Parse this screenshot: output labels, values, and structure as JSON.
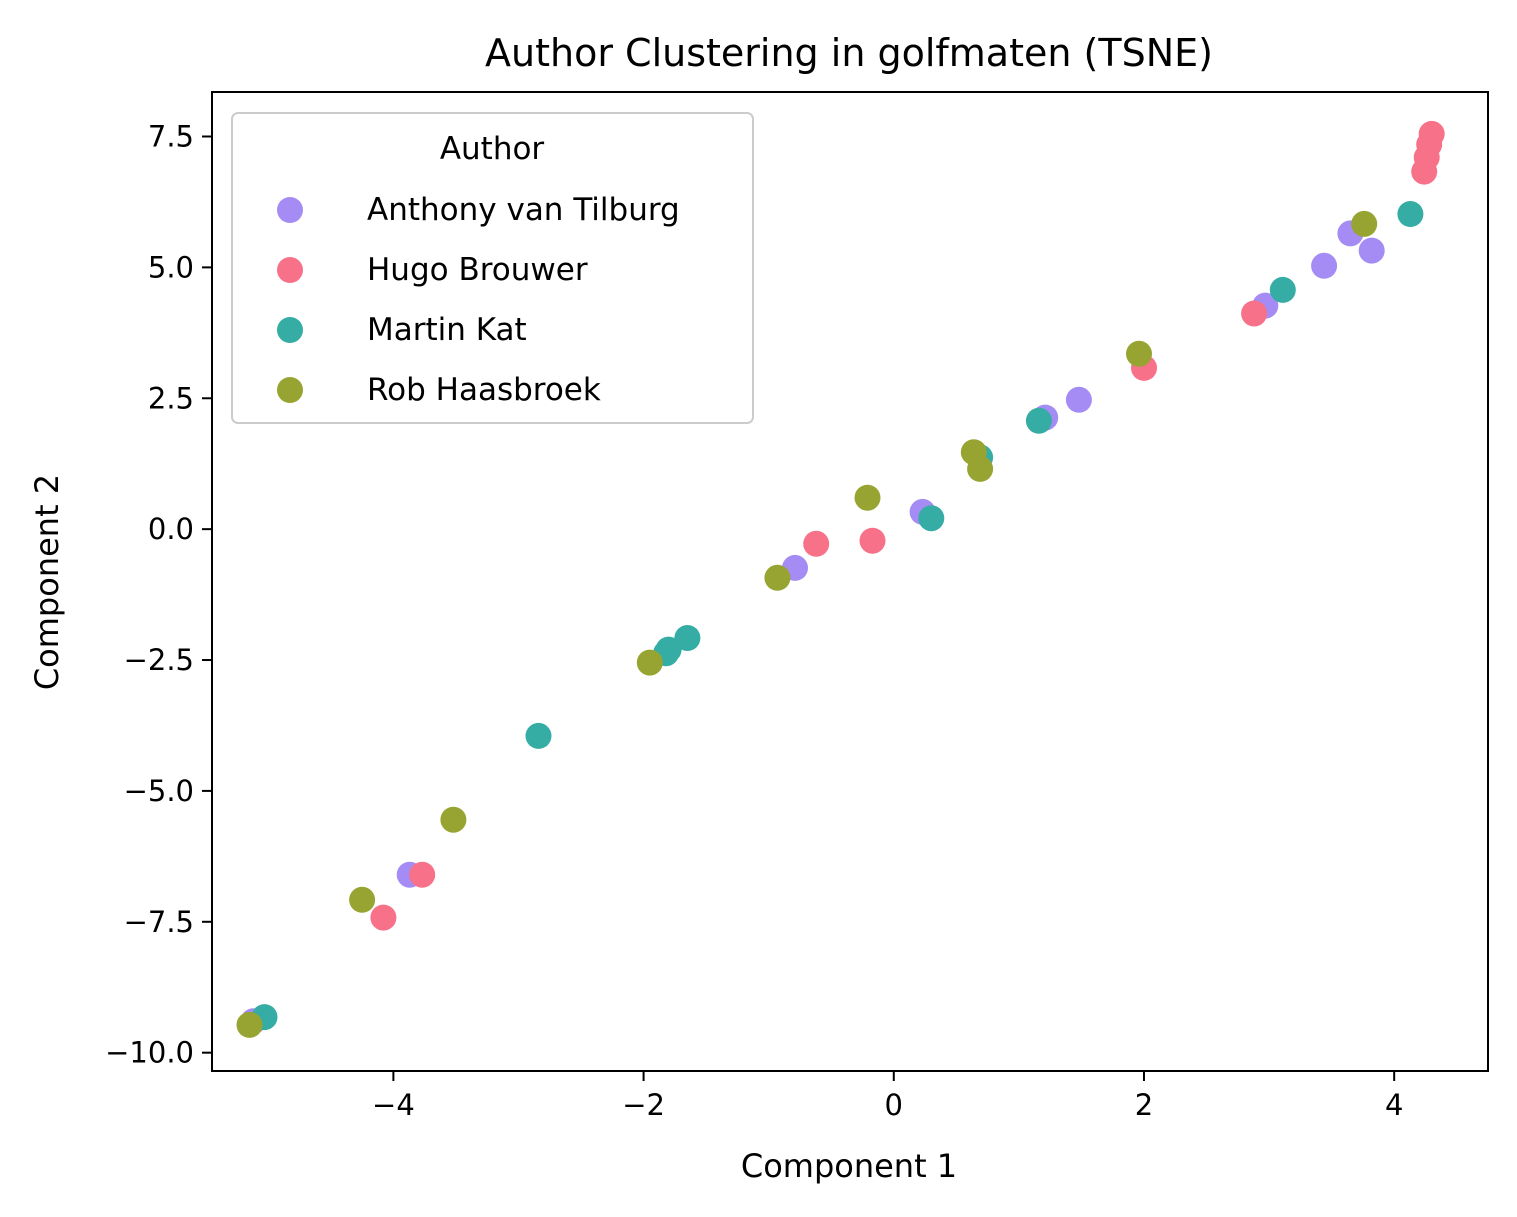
{
  "chart_data": {
    "type": "scatter",
    "title": "Author Clustering in golfmaten (TSNE)",
    "xlabel": "Component 1",
    "ylabel": "Component 2",
    "xlim": [
      -5.45,
      4.75
    ],
    "ylim": [
      -10.35,
      8.35
    ],
    "xticks": [
      -4,
      -2,
      0,
      2,
      4
    ],
    "yticks": [
      -10.0,
      -7.5,
      -5.0,
      -2.5,
      0.0,
      2.5,
      5.0,
      7.5
    ],
    "xtick_labels": [
      "−4",
      "−2",
      "0",
      "2",
      "4"
    ],
    "ytick_labels": [
      "−10.0",
      "−7.5",
      "−5.0",
      "−2.5",
      "0.0",
      "2.5",
      "5.0",
      "7.5"
    ],
    "grid": false,
    "legend": {
      "title": "Author",
      "placement": "top-left"
    },
    "series": [
      {
        "name": "Anthony van Tilburg",
        "color": "#a48cf4",
        "points": [
          [
            3.65,
            5.65
          ],
          [
            3.82,
            5.32
          ],
          [
            3.44,
            5.03
          ],
          [
            2.97,
            4.27
          ],
          [
            1.48,
            2.47
          ],
          [
            1.21,
            2.13
          ],
          [
            0.23,
            0.33
          ],
          [
            -0.79,
            -0.74
          ],
          [
            -3.87,
            -6.6
          ],
          [
            -5.12,
            -9.4
          ]
        ]
      },
      {
        "name": "Hugo Brouwer",
        "color": "#f77189",
        "points": [
          [
            4.3,
            7.55
          ],
          [
            4.28,
            7.35
          ],
          [
            4.26,
            7.1
          ],
          [
            4.24,
            6.83
          ],
          [
            2.88,
            4.12
          ],
          [
            2.0,
            3.08
          ],
          [
            -0.62,
            -0.28
          ],
          [
            -0.17,
            -0.22
          ],
          [
            -3.77,
            -6.6
          ],
          [
            -4.08,
            -7.42
          ]
        ]
      },
      {
        "name": "Martin Kat",
        "color": "#36ada4",
        "points": [
          [
            4.13,
            6.02
          ],
          [
            3.11,
            4.57
          ],
          [
            1.16,
            2.07
          ],
          [
            0.69,
            1.37
          ],
          [
            0.3,
            0.21
          ],
          [
            -1.65,
            -2.08
          ],
          [
            -1.8,
            -2.3
          ],
          [
            -1.82,
            -2.37
          ],
          [
            -2.84,
            -3.95
          ],
          [
            -5.03,
            -9.32
          ]
        ]
      },
      {
        "name": "Rob Haasbroek",
        "color": "#97a431",
        "points": [
          [
            3.76,
            5.83
          ],
          [
            1.96,
            3.35
          ],
          [
            0.64,
            1.47
          ],
          [
            0.69,
            1.15
          ],
          [
            -0.21,
            0.6
          ],
          [
            -0.93,
            -0.93
          ],
          [
            -1.95,
            -2.55
          ],
          [
            -3.52,
            -5.55
          ],
          [
            -4.25,
            -7.08
          ],
          [
            -5.15,
            -9.47
          ]
        ]
      }
    ]
  }
}
